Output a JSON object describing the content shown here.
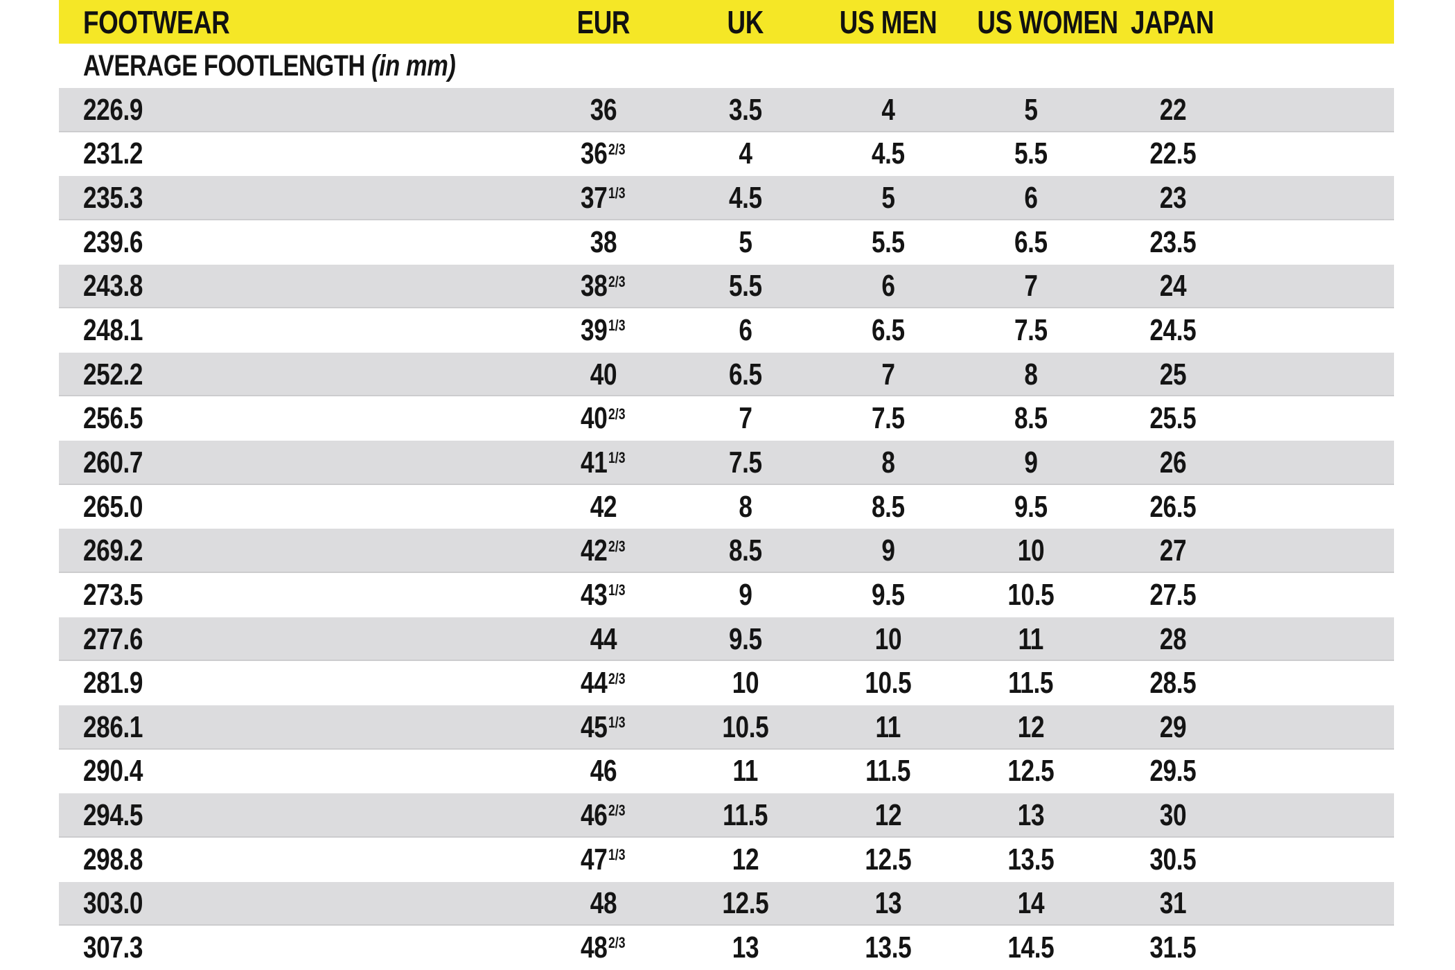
{
  "colors": {
    "header_bg": "#F5E726",
    "alt_row_bg": "#DCDCDE",
    "text": "#141414"
  },
  "chart_data": {
    "type": "table",
    "header": [
      "FOOTWEAR",
      "EUR",
      "UK",
      "US MEN",
      "US WOMEN",
      "JAPAN"
    ],
    "subheader": {
      "label": "AVERAGE FOOTLENGTH",
      "unit": "(in mm)"
    },
    "superscript_marker": "^",
    "rows": [
      [
        "226.9",
        "36",
        "3.5",
        "4",
        "5",
        "22"
      ],
      [
        "231.2",
        "36^2/3",
        "4",
        "4.5",
        "5.5",
        "22.5"
      ],
      [
        "235.3",
        "37^1/3",
        "4.5",
        "5",
        "6",
        "23"
      ],
      [
        "239.6",
        "38",
        "5",
        "5.5",
        "6.5",
        "23.5"
      ],
      [
        "243.8",
        "38^2/3",
        "5.5",
        "6",
        "7",
        "24"
      ],
      [
        "248.1",
        "39^1/3",
        "6",
        "6.5",
        "7.5",
        "24.5"
      ],
      [
        "252.2",
        "40",
        "6.5",
        "7",
        "8",
        "25"
      ],
      [
        "256.5",
        "40^2/3",
        "7",
        "7.5",
        "8.5",
        "25.5"
      ],
      [
        "260.7",
        "41^1/3",
        "7.5",
        "8",
        "9",
        "26"
      ],
      [
        "265.0",
        "42",
        "8",
        "8.5",
        "9.5",
        "26.5"
      ],
      [
        "269.2",
        "42^2/3",
        "8.5",
        "9",
        "10",
        "27"
      ],
      [
        "273.5",
        "43^1/3",
        "9",
        "9.5",
        "10.5",
        "27.5"
      ],
      [
        "277.6",
        "44",
        "9.5",
        "10",
        "11",
        "28"
      ],
      [
        "281.9",
        "44^2/3",
        "10",
        "10.5",
        "11.5",
        "28.5"
      ],
      [
        "286.1",
        "45^1/3",
        "10.5",
        "11",
        "12",
        "29"
      ],
      [
        "290.4",
        "46",
        "11",
        "11.5",
        "12.5",
        "29.5"
      ],
      [
        "294.5",
        "46^2/3",
        "11.5",
        "12",
        "13",
        "30"
      ],
      [
        "298.8",
        "47^1/3",
        "12",
        "12.5",
        "13.5",
        "30.5"
      ],
      [
        "303.0",
        "48",
        "12.5",
        "13",
        "14",
        "31"
      ],
      [
        "307.3",
        "48^2/3",
        "13",
        "13.5",
        "14.5",
        "31.5"
      ]
    ]
  }
}
